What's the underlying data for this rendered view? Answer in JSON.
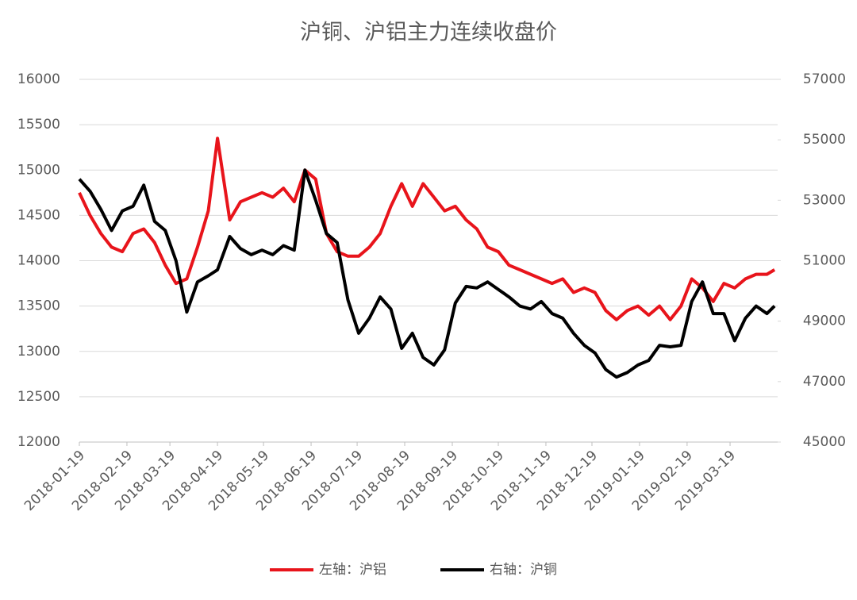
{
  "chart_data": {
    "type": "line",
    "title": "沪铜、沪铝主力连续收盘价",
    "x": [
      "2018-01-19",
      "2018-01-26",
      "2018-02-02",
      "2018-02-09",
      "2018-02-16",
      "2018-02-23",
      "2018-03-02",
      "2018-03-09",
      "2018-03-16",
      "2018-03-23",
      "2018-03-30",
      "2018-04-06",
      "2018-04-13",
      "2018-04-19",
      "2018-04-27",
      "2018-05-04",
      "2018-05-11",
      "2018-05-18",
      "2018-05-25",
      "2018-06-01",
      "2018-06-08",
      "2018-06-15",
      "2018-06-22",
      "2018-06-29",
      "2018-07-06",
      "2018-07-13",
      "2018-07-20",
      "2018-07-27",
      "2018-08-03",
      "2018-08-10",
      "2018-08-17",
      "2018-08-24",
      "2018-08-31",
      "2018-09-07",
      "2018-09-14",
      "2018-09-21",
      "2018-09-28",
      "2018-10-05",
      "2018-10-12",
      "2018-10-19",
      "2018-10-26",
      "2018-11-02",
      "2018-11-09",
      "2018-11-16",
      "2018-11-23",
      "2018-11-30",
      "2018-12-07",
      "2018-12-14",
      "2018-12-21",
      "2018-12-28",
      "2019-01-04",
      "2019-01-11",
      "2019-01-18",
      "2019-01-25",
      "2019-02-01",
      "2019-02-08",
      "2019-02-15",
      "2019-02-22",
      "2019-03-01",
      "2019-03-08",
      "2019-03-15",
      "2019-03-22",
      "2019-03-29",
      "2019-04-05",
      "2019-04-12",
      "2019-04-17"
    ],
    "series": [
      {
        "name": "左轴：沪铝",
        "color": "#e8141b",
        "axis": "y",
        "values": [
          14750,
          14500,
          14300,
          14150,
          14100,
          14300,
          14350,
          14200,
          13950,
          13750,
          13800,
          14150,
          14550,
          15350,
          14450,
          14650,
          14700,
          14750,
          14700,
          14800,
          14650,
          15000,
          14900,
          14300,
          14100,
          14050,
          14050,
          14150,
          14300,
          14600,
          14850,
          14600,
          14850,
          14700,
          14550,
          14600,
          14450,
          14350,
          14150,
          14100,
          13950,
          13900,
          13850,
          13800,
          13750,
          13800,
          13650,
          13700,
          13650,
          13450,
          13350,
          13450,
          13500,
          13400,
          13500,
          13350,
          13500,
          13800,
          13700,
          13550,
          13750,
          13700,
          13800,
          13850,
          13850,
          13900
        ]
      },
      {
        "name": "右轴：沪铜",
        "color": "#000000",
        "axis": "y2",
        "values": [
          53700,
          53300,
          52700,
          52000,
          52650,
          52800,
          53500,
          52300,
          52000,
          51000,
          49300,
          50300,
          50500,
          50700,
          51800,
          51400,
          51200,
          51350,
          51200,
          51500,
          51350,
          54000,
          53000,
          51900,
          51600,
          49700,
          48600,
          49100,
          49800,
          49400,
          48100,
          48600,
          47800,
          47550,
          48050,
          49600,
          50150,
          50100,
          50300,
          50050,
          49800,
          49500,
          49400,
          49650,
          49250,
          49100,
          48600,
          48200,
          47950,
          47400,
          47150,
          47300,
          47550,
          47700,
          48200,
          48150,
          48200,
          49650,
          50300,
          49250,
          49250,
          48350,
          49100,
          49500,
          49250,
          49500
        ]
      }
    ],
    "xlim": [
      "2018-01-19",
      "2019-04-19"
    ],
    "xticks": [
      "2018-01-19",
      "2018-02-19",
      "2018-03-19",
      "2018-04-19",
      "2018-05-19",
      "2018-06-19",
      "2018-07-19",
      "2018-08-19",
      "2018-09-19",
      "2018-10-19",
      "2018-11-19",
      "2018-12-19",
      "2019-01-19",
      "2019-02-19",
      "2019-03-19"
    ],
    "ylim": [
      12000,
      16000
    ],
    "yticks": [
      12000,
      12500,
      13000,
      13500,
      14000,
      14500,
      15000,
      15500,
      16000
    ],
    "y2lim": [
      45000,
      57000
    ],
    "y2ticks": [
      45000,
      47000,
      49000,
      51000,
      53000,
      55000,
      57000
    ],
    "grid": true,
    "legend": "bottom"
  }
}
